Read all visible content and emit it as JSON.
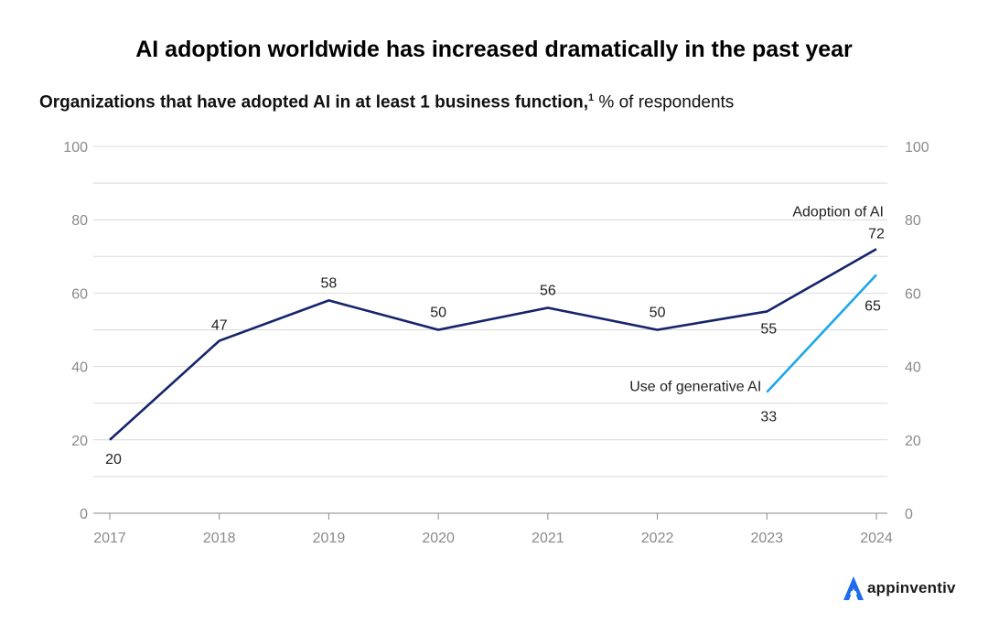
{
  "title": "AI adoption worldwide has increased dramatically in the past year",
  "subtitle": {
    "bold": "Organizations that have adopted AI in at least 1 business function,",
    "footnote": "1",
    "regular": "% of respondents"
  },
  "brand": {
    "name": "appinventiv",
    "icon": "appinventiv-logo-icon",
    "color": "#1e6bf0"
  },
  "colors": {
    "adoption": "#16246b",
    "genai": "#1ea6ea",
    "grid": "#d9d9d9",
    "axis": "#8a8a8a"
  },
  "chart_data": {
    "type": "line",
    "title": "AI adoption worldwide has increased dramatically in the past year",
    "ylabel": "% of respondents",
    "xlabel": "",
    "ylim": [
      0,
      100
    ],
    "yticks": [
      0,
      20,
      40,
      60,
      80,
      100
    ],
    "grid": true,
    "categories": [
      "2017",
      "2018",
      "2019",
      "2020",
      "2021",
      "2022",
      "2023",
      "2024"
    ],
    "series": [
      {
        "name": "Adoption of AI",
        "values": [
          20,
          47,
          58,
          50,
          56,
          50,
          55,
          72
        ],
        "labels": [
          "20",
          "47",
          "58",
          "50",
          "56",
          "50",
          "55",
          "72"
        ]
      },
      {
        "name": "Use of generative AI",
        "values": [
          null,
          null,
          null,
          null,
          null,
          null,
          33,
          65
        ],
        "labels": [
          "",
          "",
          "",
          "",
          "",
          "",
          "33",
          "65"
        ]
      }
    ]
  }
}
